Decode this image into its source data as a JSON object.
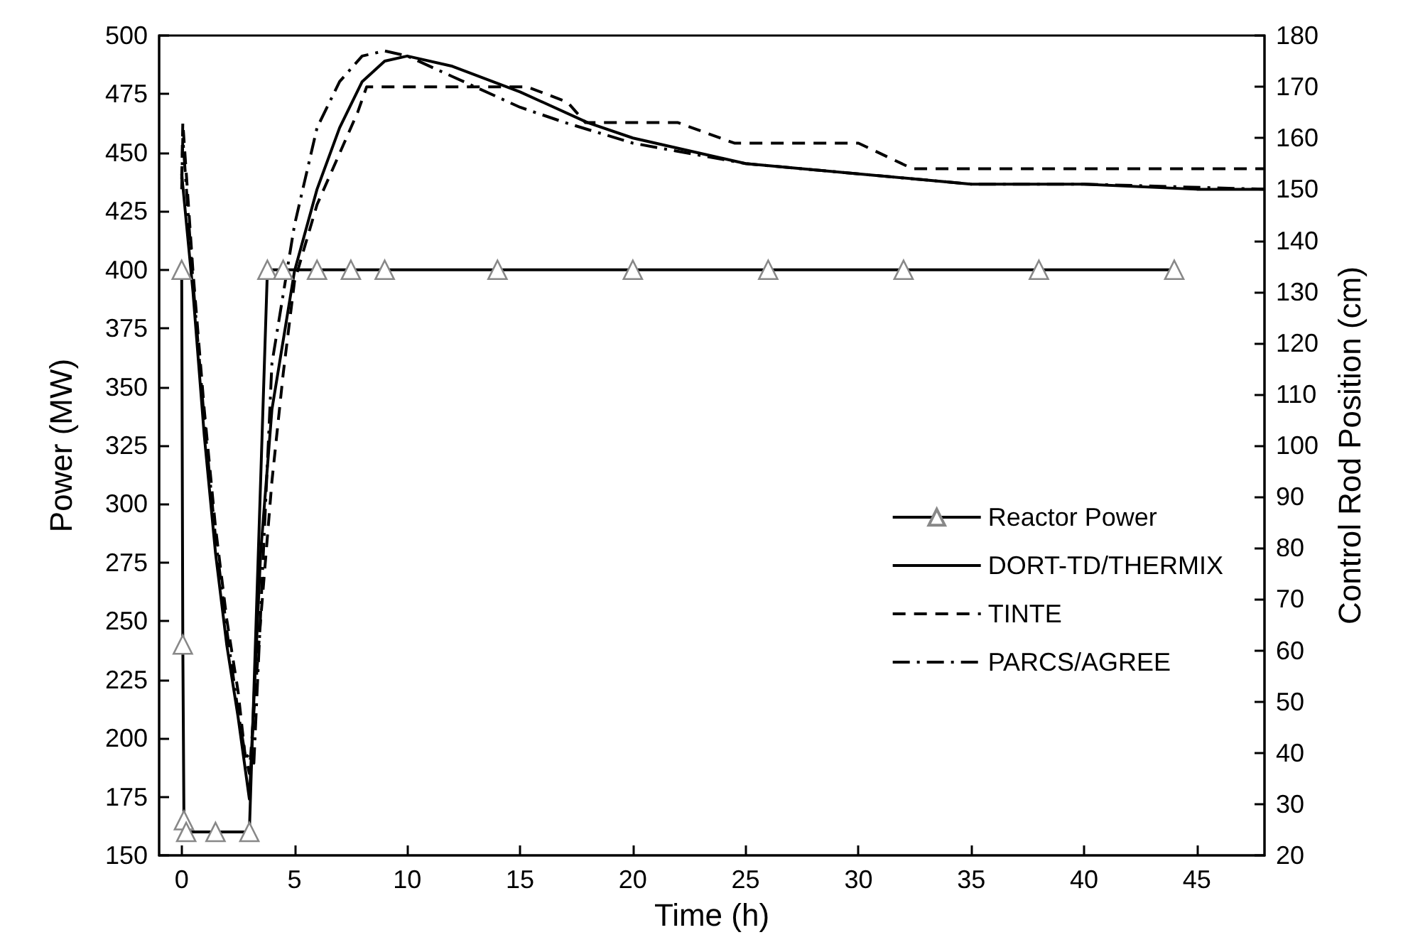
{
  "chart_data": {
    "type": "line",
    "xlabel": "Time (h)",
    "ylabel": "Power (MW)",
    "y2label": "Control Rod Position (cm)",
    "xlim": [
      -1,
      48
    ],
    "xticks": [
      0,
      5,
      10,
      15,
      20,
      25,
      30,
      35,
      40,
      45
    ],
    "ylim": [
      150,
      500
    ],
    "yticks": [
      150,
      175,
      200,
      225,
      250,
      275,
      300,
      325,
      350,
      375,
      400,
      425,
      450,
      475,
      500
    ],
    "y2lim": [
      20,
      180
    ],
    "y2ticks": [
      20,
      30,
      40,
      50,
      60,
      70,
      80,
      90,
      100,
      110,
      120,
      130,
      140,
      150,
      160,
      170,
      180
    ],
    "grid": false,
    "legend": "right",
    "series": [
      {
        "name": "Reactor Power",
        "color": "#000000",
        "marker": "triangle",
        "line_style": "solid",
        "x": [
          0,
          0.05,
          0.1,
          0.2,
          1.5,
          3.0,
          3.8,
          4.5,
          6,
          7.5,
          9,
          14,
          20,
          26,
          32,
          38,
          44
        ],
        "values": [
          400,
          240,
          165,
          160,
          160,
          160,
          400,
          400,
          400,
          400,
          400,
          400,
          400,
          400,
          400,
          400,
          400
        ]
      },
      {
        "name": "DORT-TD/THERMIX",
        "color": "#000000",
        "marker": "none",
        "line_style": "solid",
        "axis": "y2",
        "x": [
          0,
          0.5,
          1,
          1.5,
          2,
          2.5,
          3,
          3.5,
          4,
          5,
          6,
          7,
          8,
          9,
          10,
          12,
          15,
          18,
          20,
          25,
          30,
          35,
          40,
          45,
          48
        ],
        "values": [
          153,
          130,
          102,
          79,
          61,
          47,
          31,
          79,
          107,
          134,
          150,
          162,
          171,
          175,
          176,
          174,
          169,
          163,
          160,
          155,
          153,
          151,
          151,
          150,
          150
        ]
      },
      {
        "name": "TINTE",
        "color": "#000000",
        "marker": "none",
        "line_style": "dashed",
        "axis": "y2",
        "x": [
          0,
          0.05,
          0.5,
          1,
          1.5,
          2,
          2.5,
          2.8,
          3.0,
          3.5,
          4,
          4.5,
          5,
          6,
          7,
          7.8,
          8.2,
          15.3,
          17.1,
          17.9,
          22.0,
          24.5,
          30.0,
          32.4,
          48
        ],
        "values": [
          152,
          163,
          134,
          107,
          84,
          66,
          52,
          40,
          36,
          66,
          93,
          114,
          132,
          147,
          157,
          165,
          170,
          170,
          167,
          163,
          163,
          159,
          159,
          154,
          154
        ]
      },
      {
        "name": "PARCS/AGREE",
        "color": "#000000",
        "marker": "none",
        "line_style": "dashdot",
        "axis": "y2",
        "x": [
          0,
          0.05,
          0.5,
          1,
          1.5,
          2,
          2.5,
          2.8,
          3.2,
          4,
          5,
          6,
          7,
          8,
          9,
          10,
          12,
          15,
          17,
          20,
          25,
          30,
          35,
          40,
          48
        ],
        "values": [
          150,
          160,
          132,
          105,
          82,
          64,
          48,
          40,
          38,
          116,
          143,
          162,
          171,
          176,
          177,
          176,
          172,
          166,
          163,
          159,
          155,
          153,
          151,
          151,
          150
        ]
      }
    ]
  }
}
